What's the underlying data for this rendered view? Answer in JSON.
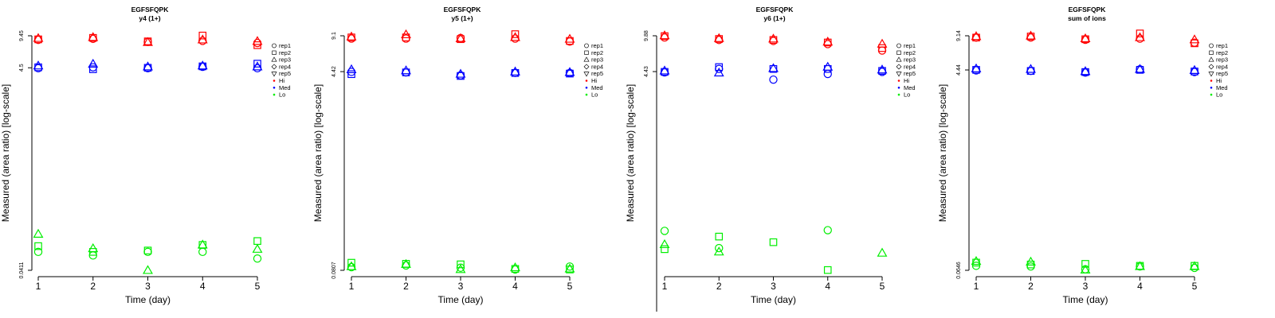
{
  "legend": {
    "reps": [
      {
        "label": "rep1",
        "symbol": "circle"
      },
      {
        "label": "rep2",
        "symbol": "square"
      },
      {
        "label": "rep3",
        "symbol": "triangle-up"
      },
      {
        "label": "rep4",
        "symbol": "diamond"
      },
      {
        "label": "rep5",
        "symbol": "triangle-down"
      }
    ],
    "levels": [
      {
        "label": "Hi",
        "color": "#ff0000"
      },
      {
        "label": "Med",
        "color": "#0000ff"
      },
      {
        "label": "Lo",
        "color": "#00ee00"
      }
    ]
  },
  "chart_data": [
    {
      "type": "scatter",
      "title": "EGFSFQPK",
      "subtitle": "y4 (1+)",
      "xlabel": "Time (day)",
      "ylabel": "Measured (area ratio) [log-scale]",
      "y_scale": "log",
      "ylim": [
        0.0411,
        9.45
      ],
      "yticks": [
        0.0411,
        4.5,
        9.45
      ],
      "ytick_labels": [
        "0.0411",
        "4.5",
        "9.45"
      ],
      "x": [
        1,
        2,
        3,
        4,
        5
      ],
      "legend_position": "right",
      "series": [
        {
          "name": "rep1 Hi",
          "level": "Hi",
          "rep": "rep1",
          "values": [
            8.6,
            8.8,
            8.2,
            8.4,
            8.0
          ]
        },
        {
          "name": "rep2 Hi",
          "level": "Hi",
          "rep": "rep2",
          "values": [
            8.7,
            9.0,
            8.3,
            9.5,
            7.6
          ]
        },
        {
          "name": "rep3 Hi",
          "level": "Hi",
          "rep": "rep3",
          "values": [
            8.9,
            9.1,
            8.1,
            8.6,
            8.3
          ]
        },
        {
          "name": "rep1 Med",
          "level": "Med",
          "rep": "rep1",
          "values": [
            4.45,
            4.55,
            4.45,
            4.6,
            4.45
          ]
        },
        {
          "name": "rep2 Med",
          "level": "Med",
          "rep": "rep2",
          "values": [
            4.55,
            4.35,
            4.5,
            4.65,
            4.95
          ]
        },
        {
          "name": "rep3 Med",
          "level": "Med",
          "rep": "rep3",
          "values": [
            4.7,
            4.9,
            4.6,
            4.7,
            4.6
          ]
        },
        {
          "name": "rep1 Lo",
          "level": "Lo",
          "rep": "rep1",
          "values": [
            0.063,
            0.058,
            0.063,
            0.063,
            0.054
          ]
        },
        {
          "name": "rep2 Lo",
          "level": "Lo",
          "rep": "rep2",
          "values": [
            0.072,
            0.063,
            0.065,
            0.074,
            0.081
          ]
        },
        {
          "name": "rep3 Lo",
          "level": "Lo",
          "rep": "rep3",
          "values": [
            0.095,
            0.068,
            0.041,
            0.074,
            0.067
          ]
        }
      ]
    },
    {
      "type": "scatter",
      "title": "EGFSFQPK",
      "subtitle": "y5 (1+)",
      "xlabel": "Time (day)",
      "ylabel": "Measured (area ratio) [log-scale]",
      "y_scale": "log",
      "ylim": [
        0.0807,
        9.1
      ],
      "yticks": [
        0.0807,
        4.42,
        9.1
      ],
      "ytick_labels": [
        "0.0807",
        "4.42",
        "9.1"
      ],
      "x": [
        1,
        2,
        3,
        4,
        5
      ],
      "legend_position": "right",
      "series": [
        {
          "name": "rep1 Hi",
          "level": "Hi",
          "rep": "rep1",
          "values": [
            8.6,
            8.6,
            8.7,
            8.6,
            8.1
          ]
        },
        {
          "name": "rep2 Hi",
          "level": "Hi",
          "rep": "rep2",
          "values": [
            8.8,
            8.8,
            8.5,
            9.4,
            8.2
          ]
        },
        {
          "name": "rep3 Hi",
          "level": "Hi",
          "rep": "rep3",
          "values": [
            8.9,
            9.3,
            8.6,
            8.8,
            8.5
          ]
        },
        {
          "name": "rep1 Med",
          "level": "Med",
          "rep": "rep1",
          "values": [
            4.4,
            4.35,
            4.1,
            4.3,
            4.3
          ]
        },
        {
          "name": "rep2 Med",
          "level": "Med",
          "rep": "rep2",
          "values": [
            4.2,
            4.35,
            4.05,
            4.3,
            4.25
          ]
        },
        {
          "name": "rep3 Med",
          "level": "Med",
          "rep": "rep3",
          "values": [
            4.6,
            4.5,
            4.2,
            4.4,
            4.35
          ]
        },
        {
          "name": "rep1 Lo",
          "level": "Lo",
          "rep": "rep1",
          "values": [
            0.086,
            0.089,
            0.085,
            0.082,
            0.087
          ]
        },
        {
          "name": "rep2 Lo",
          "level": "Lo",
          "rep": "rep2",
          "values": [
            0.094,
            0.092,
            0.091,
            0.083,
            0.082
          ]
        },
        {
          "name": "rep3 Lo",
          "level": "Lo",
          "rep": "rep3",
          "values": [
            0.087,
            0.091,
            0.082,
            0.085,
            0.083
          ]
        }
      ]
    },
    {
      "type": "scatter",
      "title": "EGFSFQPK",
      "subtitle": "y6 (1+)",
      "xlabel": "Time (day)",
      "ylabel": "Measured (area ratio) [log-scale]",
      "y_scale": "log",
      "ylim": [
        0.0517,
        9.88
      ],
      "yticks": [
        4.43,
        9.88
      ],
      "ytick_labels": [
        "4.43",
        "9.88"
      ],
      "x": [
        1,
        2,
        3,
        4,
        5
      ],
      "legend_position": "right",
      "series": [
        {
          "name": "rep1 Hi",
          "level": "Hi",
          "rep": "rep1",
          "values": [
            9.5,
            9.0,
            8.8,
            8.2,
            7.1
          ]
        },
        {
          "name": "rep2 Hi",
          "level": "Hi",
          "rep": "rep2",
          "values": [
            9.8,
            9.2,
            9.0,
            8.5,
            7.5
          ]
        },
        {
          "name": "rep3 Hi",
          "level": "Hi",
          "rep": "rep3",
          "values": [
            9.9,
            9.3,
            9.2,
            8.6,
            8.2
          ]
        },
        {
          "name": "rep1 Med",
          "level": "Med",
          "rep": "rep1",
          "values": [
            4.35,
            4.7,
            3.7,
            4.2,
            4.4
          ]
        },
        {
          "name": "rep2 Med",
          "level": "Med",
          "rep": "rep2",
          "values": [
            4.4,
            4.9,
            4.7,
            4.7,
            4.5
          ]
        },
        {
          "name": "rep3 Med",
          "level": "Med",
          "rep": "rep3",
          "values": [
            4.5,
            4.3,
            4.75,
            4.9,
            4.6
          ]
        },
        {
          "name": "rep1 Lo",
          "level": "Lo",
          "rep": "rep1",
          "values": [
            0.125,
            0.085,
            null,
            0.127,
            null
          ]
        },
        {
          "name": "rep2 Lo",
          "level": "Lo",
          "rep": "rep2",
          "values": [
            0.083,
            0.11,
            0.097,
            0.052,
            null
          ]
        },
        {
          "name": "rep3 Lo",
          "level": "Lo",
          "rep": "rep3",
          "values": [
            0.092,
            0.078,
            null,
            null,
            0.076
          ]
        }
      ]
    },
    {
      "type": "scatter",
      "title": "EGFSFQPK",
      "subtitle": "sum of ions",
      "xlabel": "Time (day)",
      "ylabel": "Measured (area ratio) [log-scale]",
      "y_scale": "log",
      "ylim": [
        0.0646,
        9.14
      ],
      "yticks": [
        0.0646,
        4.44,
        9.14
      ],
      "ytick_labels": [
        "0.0646",
        "4.44",
        "9.14"
      ],
      "x": [
        1,
        2,
        3,
        4,
        5
      ],
      "legend_position": "right",
      "series": [
        {
          "name": "rep1 Hi",
          "level": "Hi",
          "rep": "rep1",
          "values": [
            8.8,
            8.8,
            8.4,
            8.6,
            7.9
          ]
        },
        {
          "name": "rep2 Hi",
          "level": "Hi",
          "rep": "rep2",
          "values": [
            8.8,
            9.0,
            8.5,
            9.6,
            7.8
          ]
        },
        {
          "name": "rep3 Hi",
          "level": "Hi",
          "rep": "rep3",
          "values": [
            9.0,
            9.1,
            8.6,
            8.8,
            8.4
          ]
        },
        {
          "name": "rep1 Med",
          "level": "Med",
          "rep": "rep1",
          "values": [
            4.4,
            4.35,
            4.2,
            4.5,
            4.25
          ]
        },
        {
          "name": "rep2 Med",
          "level": "Med",
          "rep": "rep2",
          "values": [
            4.45,
            4.35,
            4.25,
            4.45,
            4.3
          ]
        },
        {
          "name": "rep3 Med",
          "level": "Med",
          "rep": "rep3",
          "values": [
            4.55,
            4.5,
            4.3,
            4.5,
            4.4
          ]
        },
        {
          "name": "rep1 Lo",
          "level": "Lo",
          "rep": "rep1",
          "values": [
            0.071,
            0.07,
            0.066,
            0.07,
            0.068
          ]
        },
        {
          "name": "rep2 Lo",
          "level": "Lo",
          "rep": "rep2",
          "values": [
            0.076,
            0.073,
            0.074,
            0.071,
            0.071
          ]
        },
        {
          "name": "rep3 Lo",
          "level": "Lo",
          "rep": "rep3",
          "values": [
            0.078,
            0.077,
            0.065,
            0.07,
            0.07
          ]
        }
      ]
    }
  ]
}
